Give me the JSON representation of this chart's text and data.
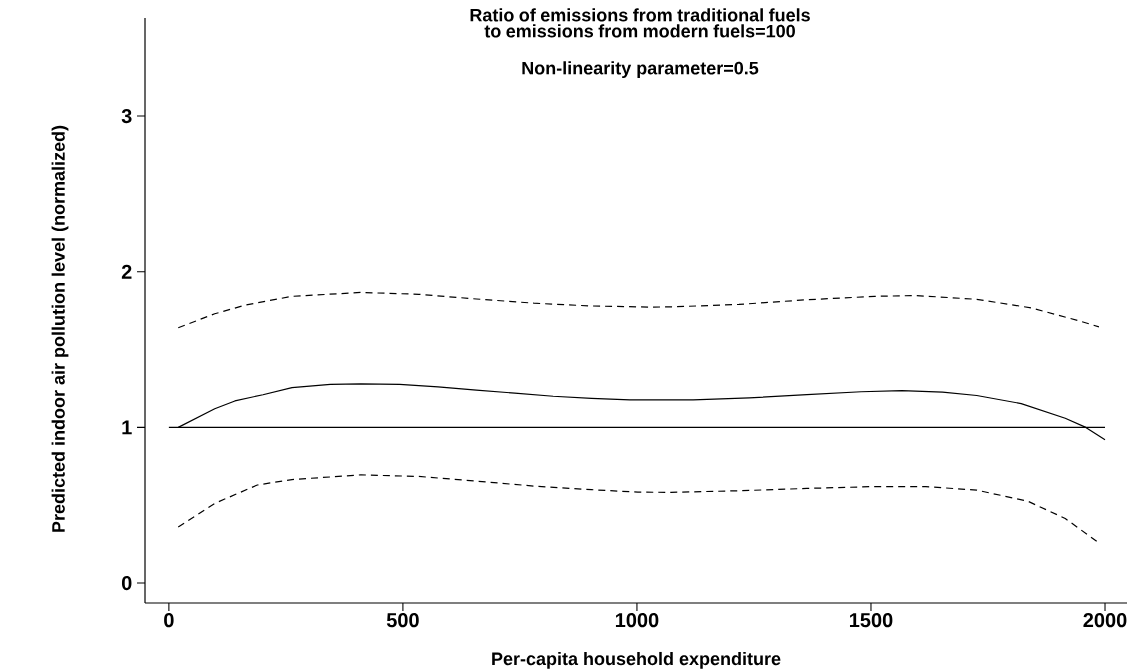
{
  "chart_data": {
    "type": "line",
    "title": "Ratio of emissions from traditional fuels to emissions from modern fuels=100",
    "subtitle": "Non-linearity parameter=0.5",
    "xlabel": "Per-capita household expenditure",
    "ylabel": "Predicted indoor air pollution level (normalized)",
    "xlim": [
      -51,
      2047
    ],
    "ylim": [
      -0.128,
      3.63
    ],
    "xticks": [
      0,
      500,
      1000,
      1500,
      2000
    ],
    "yticks": [
      0,
      1,
      2,
      3
    ],
    "marker": "none",
    "ref_lines": [
      {
        "axis": "y",
        "value": 1,
        "color": "#000000",
        "line_style": "solid"
      }
    ],
    "series": [
      {
        "color": "#000000",
        "line_style": "solid",
        "x": [
          20,
          98,
          141,
          201,
          263,
          345,
          410,
          493,
          575,
          657,
          739,
          821,
          903,
          985,
          1120,
          1240,
          1363,
          1479,
          1566,
          1653,
          1726,
          1821,
          1915,
          1959,
          2000
        ],
        "values": [
          1.0,
          1.12,
          1.17,
          1.21,
          1.256,
          1.276,
          1.28,
          1.276,
          1.26,
          1.24,
          1.22,
          1.2,
          1.187,
          1.177,
          1.177,
          1.19,
          1.21,
          1.229,
          1.236,
          1.227,
          1.205,
          1.153,
          1.059,
          1.0,
          0.92
        ]
      },
      {
        "color": "#000000",
        "line_style": "dashed",
        "x": [
          20,
          98,
          164,
          263,
          410,
          534,
          657,
          780,
          903,
          1025,
          1073,
          1218,
          1363,
          1508,
          1596,
          1726,
          1842,
          1944,
          1987
        ],
        "values": [
          1.64,
          1.73,
          1.786,
          1.842,
          1.867,
          1.855,
          1.825,
          1.798,
          1.78,
          1.773,
          1.774,
          1.79,
          1.82,
          1.842,
          1.847,
          1.823,
          1.768,
          1.685,
          1.646
        ]
      },
      {
        "color": "#000000",
        "line_style": "dashed",
        "x": [
          20,
          98,
          189,
          263,
          410,
          534,
          657,
          780,
          903,
          1002,
          1073,
          1218,
          1363,
          1508,
          1617,
          1726,
          1835,
          1915,
          1987
        ],
        "values": [
          0.36,
          0.512,
          0.63,
          0.665,
          0.695,
          0.685,
          0.655,
          0.623,
          0.6,
          0.584,
          0.583,
          0.593,
          0.608,
          0.62,
          0.62,
          0.597,
          0.526,
          0.415,
          0.258
        ]
      }
    ]
  }
}
